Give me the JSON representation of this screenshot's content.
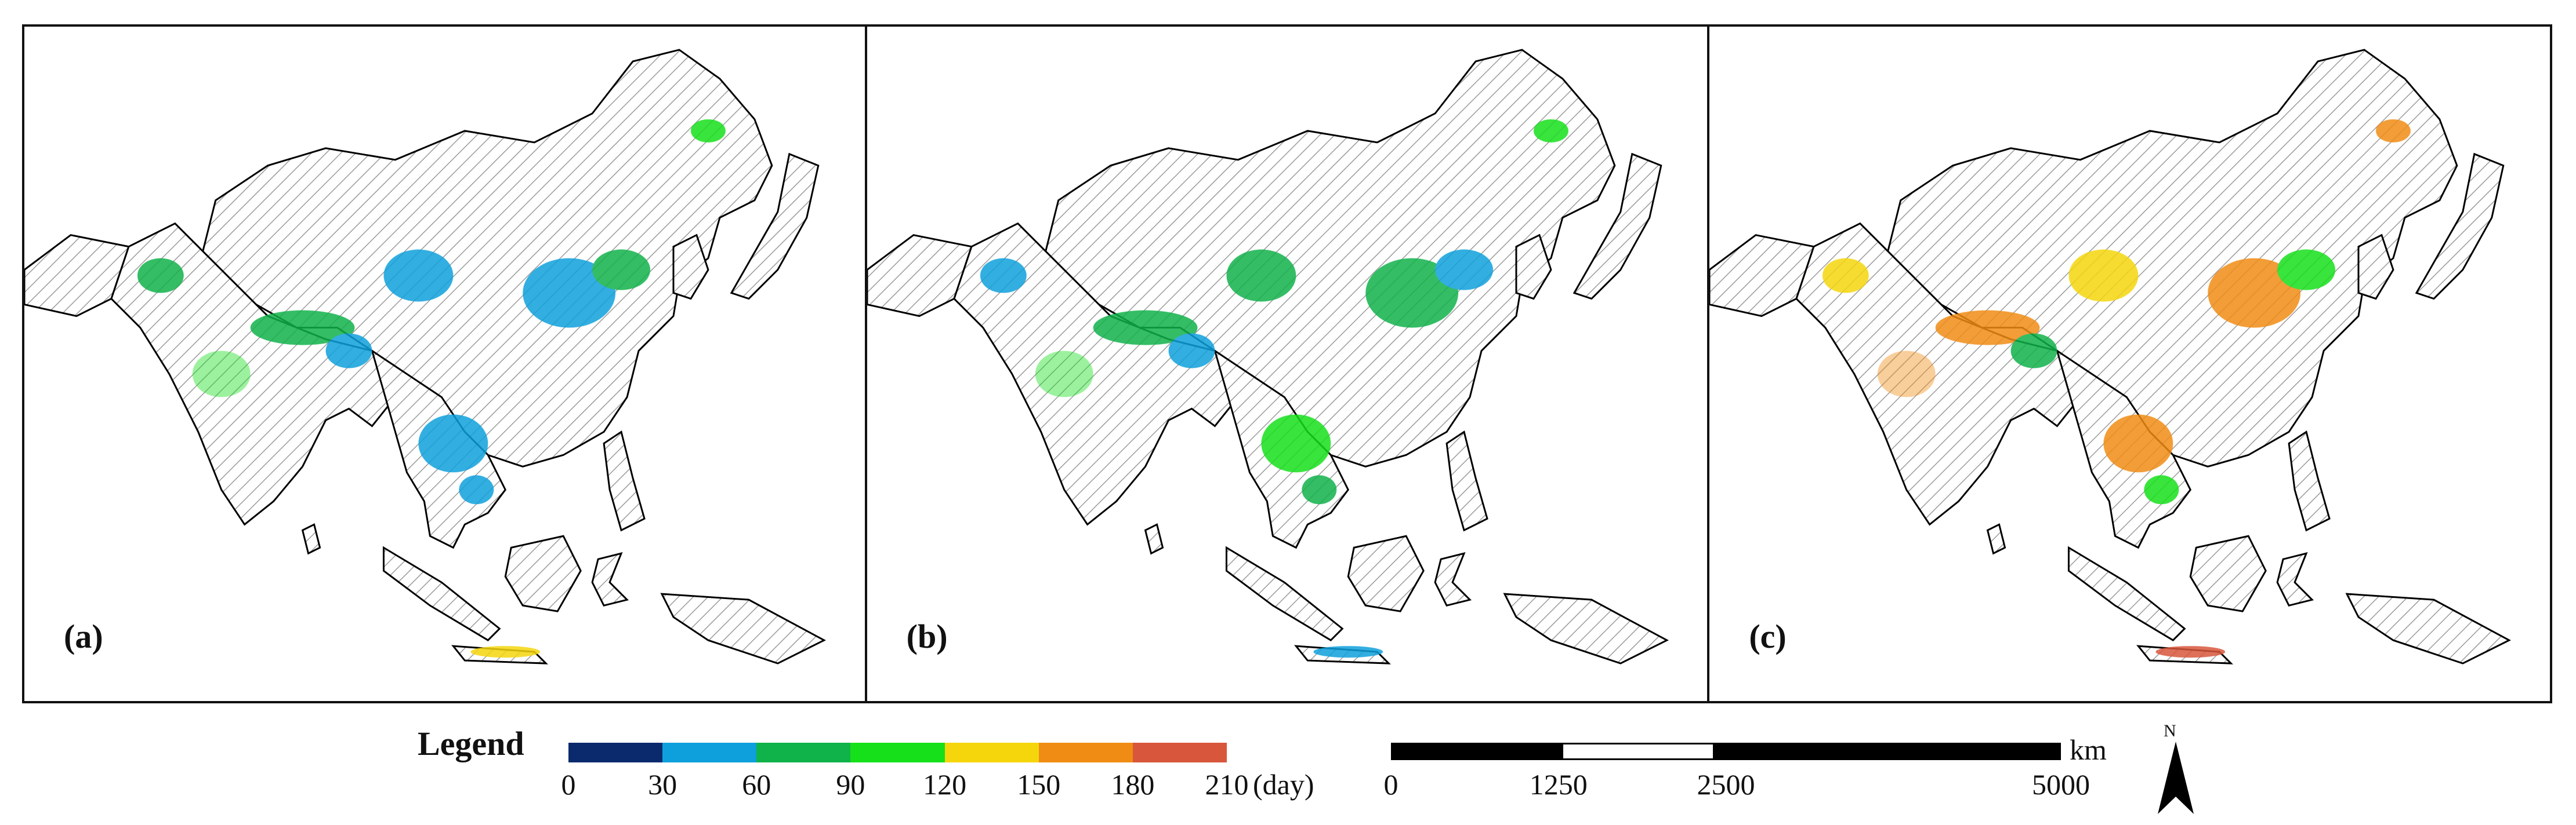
{
  "panels": [
    {
      "label": "(a)"
    },
    {
      "label": "(b)"
    },
    {
      "label": "(c)"
    }
  ],
  "legend": {
    "title": "Legend",
    "unit": "(day)",
    "ticks": [
      "0",
      "30",
      "60",
      "90",
      "120",
      "150",
      "180",
      "210"
    ],
    "colors": [
      "#0b2a6e",
      "#0ea0dc",
      "#10b24a",
      "#16e01a",
      "#f5d60c",
      "#f08c14",
      "#d8563c"
    ]
  },
  "scale_bar": {
    "unit": "km",
    "ticks": [
      "0",
      "1250",
      "2500",
      "5000"
    ]
  },
  "north_arrow": {
    "label": "N"
  },
  "icons": {
    "north": "north-arrow-icon"
  }
}
